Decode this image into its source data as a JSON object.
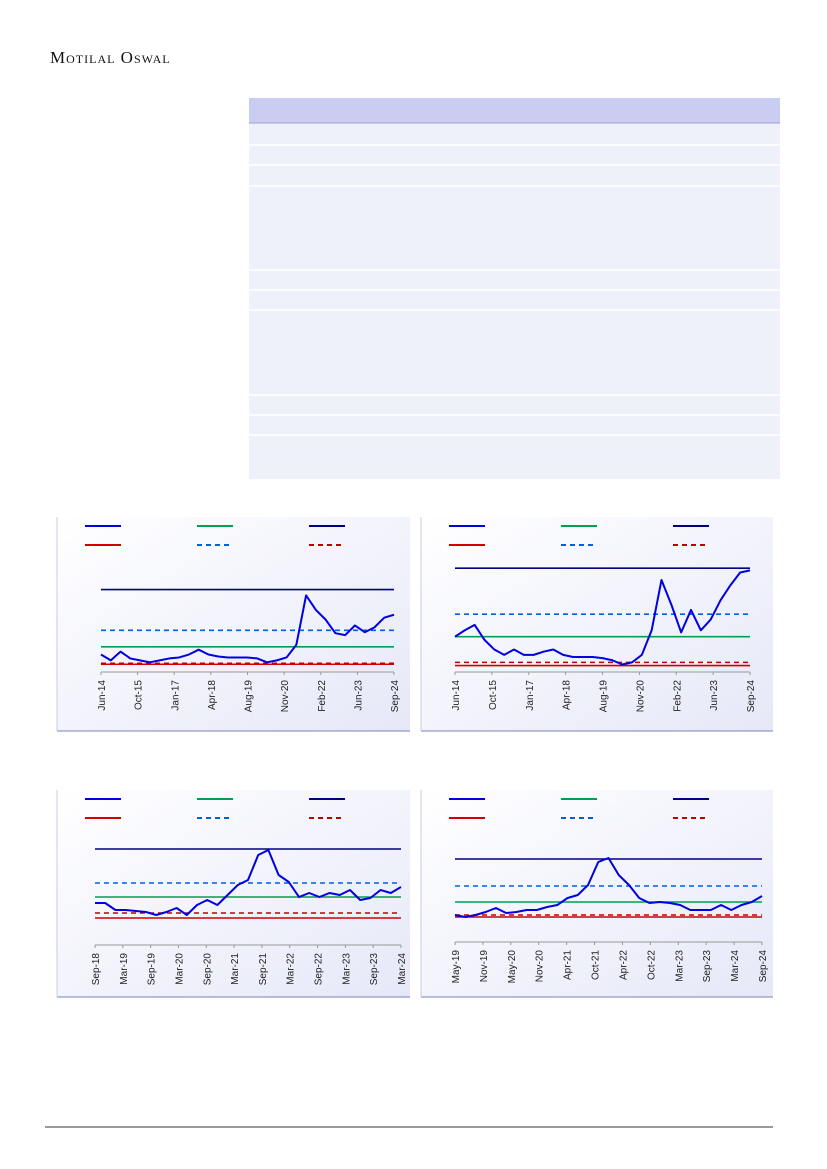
{
  "header": {
    "title": "Motilal Oswal"
  },
  "chart_data": [
    {
      "type": "line",
      "x": [
        0,
        1,
        2,
        3,
        4,
        5,
        6,
        7,
        8,
        9,
        10,
        11,
        12,
        13,
        14,
        15,
        16,
        17,
        18,
        19,
        20,
        21,
        22,
        23,
        24,
        25,
        26,
        27,
        28,
        29,
        30
      ],
      "xlim": [
        0,
        30
      ],
      "ylim": [
        0,
        100
      ],
      "xticks": [
        {
          "value": 0,
          "label": "Jun-14"
        },
        {
          "value": 3.75,
          "label": "Oct-15"
        },
        {
          "value": 7.5,
          "label": "Jan-17"
        },
        {
          "value": 11.25,
          "label": "Apr-18"
        },
        {
          "value": 15,
          "label": "Aug-19"
        },
        {
          "value": 18.75,
          "label": "Nov-20"
        },
        {
          "value": 22.5,
          "label": "Feb-22"
        },
        {
          "value": 26.25,
          "label": "Jun-23"
        },
        {
          "value": 30,
          "label": "Sep-24"
        }
      ],
      "series": [
        {
          "color": "#0000e0",
          "values": [
            18,
            12,
            21,
            14,
            12,
            10,
            12,
            14,
            15,
            18,
            23,
            18,
            16,
            15,
            15,
            15,
            14,
            10,
            12,
            15,
            28,
            79,
            64,
            54,
            40,
            38,
            48,
            41,
            46,
            56,
            59
          ]
        }
      ],
      "levels": [
        {
          "color": "#00a050",
          "dash": false,
          "value": 26
        },
        {
          "color": "#000080",
          "dash": false,
          "value": 85
        },
        {
          "color": "#d00000",
          "dash": false,
          "value": 8
        },
        {
          "color": "#0060e0",
          "dash": true,
          "value": 43
        },
        {
          "color": "#c00000",
          "dash": true,
          "value": 9
        }
      ]
    },
    {
      "type": "line",
      "x": [
        0,
        1,
        2,
        3,
        4,
        5,
        6,
        7,
        8,
        9,
        10,
        11,
        12,
        13,
        14,
        15,
        16,
        17,
        18,
        19,
        20,
        21,
        22,
        23,
        24,
        25,
        26,
        27,
        28,
        29,
        30
      ],
      "xlim": [
        0,
        30
      ],
      "ylim": [
        0,
        100
      ],
      "xticks": [
        {
          "value": 0,
          "label": "Jun-14"
        },
        {
          "value": 3.75,
          "label": "Oct-15"
        },
        {
          "value": 7.5,
          "label": "Jan-17"
        },
        {
          "value": 11.25,
          "label": "Apr-18"
        },
        {
          "value": 15,
          "label": "Aug-19"
        },
        {
          "value": 18.75,
          "label": "Nov-20"
        },
        {
          "value": 22.5,
          "label": "Feb-22"
        },
        {
          "value": 26.25,
          "label": "Jun-23"
        },
        {
          "value": 30,
          "label": "Sep-24"
        }
      ],
      "series": [
        {
          "color": "#0000e0",
          "values": [
            33,
            39,
            44,
            30,
            21,
            16,
            21,
            16,
            16,
            19,
            21,
            16,
            14,
            14,
            14,
            13,
            11,
            7,
            9,
            16,
            39,
            86,
            63,
            37,
            58,
            39,
            49,
            67,
            81,
            93,
            95
          ]
        }
      ],
      "levels": [
        {
          "color": "#00a050",
          "dash": false,
          "value": 33
        },
        {
          "color": "#000080",
          "dash": false,
          "value": 97
        },
        {
          "color": "#d00000",
          "dash": false,
          "value": 6
        },
        {
          "color": "#0060e0",
          "dash": true,
          "value": 54
        },
        {
          "color": "#c00000",
          "dash": true,
          "value": 9
        }
      ]
    },
    {
      "type": "line",
      "x": [
        0,
        1,
        2,
        3,
        4,
        5,
        6,
        7,
        8,
        9,
        10,
        11,
        12,
        13,
        14,
        15,
        16,
        17,
        18,
        19,
        20,
        21,
        22,
        23,
        24,
        25,
        26,
        27,
        28,
        29,
        30
      ],
      "xlim": [
        0,
        30
      ],
      "ylim": [
        0,
        100
      ],
      "xticks": [
        {
          "value": 0,
          "label": "Sep-18"
        },
        {
          "value": 2.727,
          "label": "Mar-19"
        },
        {
          "value": 5.455,
          "label": "Sep-19"
        },
        {
          "value": 8.182,
          "label": "Mar-20"
        },
        {
          "value": 10.909,
          "label": "Sep-20"
        },
        {
          "value": 13.636,
          "label": "Mar-21"
        },
        {
          "value": 16.364,
          "label": "Sep-21"
        },
        {
          "value": 19.091,
          "label": "Mar-22"
        },
        {
          "value": 21.818,
          "label": "Sep-22"
        },
        {
          "value": 24.545,
          "label": "Mar-23"
        },
        {
          "value": 27.273,
          "label": "Sep-23"
        },
        {
          "value": 30,
          "label": "Mar-24"
        }
      ],
      "series": [
        {
          "color": "#0000e0",
          "values": [
            42,
            42,
            35,
            35,
            34,
            33,
            30,
            33,
            37,
            30,
            40,
            45,
            40,
            50,
            60,
            65,
            90,
            95,
            70,
            63,
            48,
            52,
            48,
            52,
            50,
            55,
            45,
            47,
            55,
            52,
            58
          ]
        }
      ],
      "levels": [
        {
          "color": "#00a050",
          "dash": false,
          "value": 48
        },
        {
          "color": "#000080",
          "dash": false,
          "value": 96
        },
        {
          "color": "#d00000",
          "dash": false,
          "value": 27
        },
        {
          "color": "#0060e0",
          "dash": true,
          "value": 62
        },
        {
          "color": "#c00000",
          "dash": true,
          "value": 32
        }
      ]
    },
    {
      "type": "line",
      "x": [
        0,
        1,
        2,
        3,
        4,
        5,
        6,
        7,
        8,
        9,
        10,
        11,
        12,
        13,
        14,
        15,
        16,
        17,
        18,
        19,
        20,
        21,
        22,
        23,
        24,
        25,
        26,
        27,
        28,
        29,
        30
      ],
      "xlim": [
        0,
        30
      ],
      "ylim": [
        0,
        100
      ],
      "xticks": [
        {
          "value": 0,
          "label": "May-19"
        },
        {
          "value": 2.727,
          "label": "Nov-19"
        },
        {
          "value": 5.455,
          "label": "May-20"
        },
        {
          "value": 8.182,
          "label": "Nov-20"
        },
        {
          "value": 10.909,
          "label": "Apr-21"
        },
        {
          "value": 13.636,
          "label": "Oct-21"
        },
        {
          "value": 16.364,
          "label": "Apr-22"
        },
        {
          "value": 19.091,
          "label": "Oct-22"
        },
        {
          "value": 21.818,
          "label": "Mar-23"
        },
        {
          "value": 24.545,
          "label": "Sep-23"
        },
        {
          "value": 27.273,
          "label": "Mar-24"
        },
        {
          "value": 30,
          "label": "Sep-24"
        }
      ],
      "series": [
        {
          "color": "#0000e0",
          "values": [
            27,
            25,
            27,
            30,
            34,
            29,
            30,
            32,
            32,
            35,
            37,
            44,
            47,
            57,
            80,
            84,
            67,
            57,
            44,
            39,
            40,
            39,
            37,
            32,
            32,
            32,
            37,
            32,
            37,
            40,
            46
          ]
        }
      ],
      "levels": [
        {
          "color": "#00a050",
          "dash": false,
          "value": 40
        },
        {
          "color": "#000080",
          "dash": false,
          "value": 83
        },
        {
          "color": "#d00000",
          "dash": false,
          "value": 25
        },
        {
          "color": "#0060e0",
          "dash": true,
          "value": 56
        },
        {
          "color": "#c00000",
          "dash": true,
          "value": 27
        }
      ]
    }
  ]
}
